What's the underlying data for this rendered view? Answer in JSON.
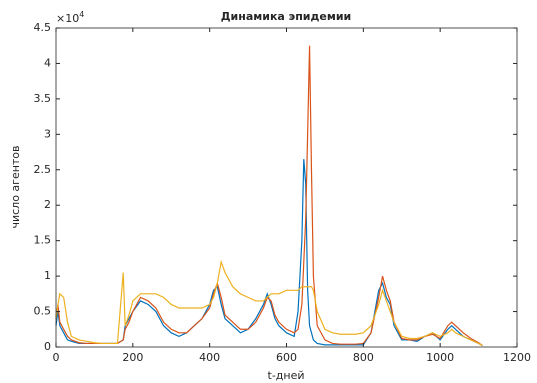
{
  "chart_data": {
    "type": "line",
    "title": "Динамика эпидемии",
    "x_label": "t-дней",
    "y_label": "число агентов",
    "y_scale_base": "×10",
    "y_scale_exponent": "4",
    "x": [
      0,
      5,
      10,
      20,
      30,
      40,
      60,
      80,
      100,
      120,
      140,
      160,
      175,
      180,
      190,
      200,
      220,
      240,
      260,
      280,
      300,
      320,
      340,
      360,
      380,
      400,
      410,
      420,
      430,
      440,
      460,
      480,
      500,
      520,
      540,
      550,
      560,
      570,
      580,
      600,
      620,
      630,
      640,
      645,
      650,
      655,
      660,
      665,
      670,
      680,
      700,
      720,
      740,
      760,
      780,
      800,
      820,
      840,
      850,
      860,
      870,
      880,
      900,
      920,
      940,
      960,
      980,
      1000,
      1020,
      1030,
      1040,
      1060,
      1080,
      1100,
      1110
    ],
    "series": [
      {
        "color": "#0072bd",
        "values": [
          0.3,
          0.5,
          0.3,
          0.2,
          0.1,
          0.08,
          0.05,
          0.05,
          0.05,
          0.05,
          0.05,
          0.05,
          0.1,
          0.3,
          0.4,
          0.5,
          0.65,
          0.6,
          0.5,
          0.3,
          0.2,
          0.15,
          0.2,
          0.3,
          0.4,
          0.6,
          0.8,
          0.85,
          0.6,
          0.4,
          0.3,
          0.2,
          0.25,
          0.4,
          0.6,
          0.75,
          0.6,
          0.4,
          0.3,
          0.2,
          0.15,
          0.5,
          1.5,
          2.65,
          2.3,
          0.8,
          0.3,
          0.2,
          0.1,
          0.05,
          0.03,
          0.03,
          0.03,
          0.03,
          0.03,
          0.03,
          0.2,
          0.8,
          0.9,
          0.7,
          0.6,
          0.3,
          0.1,
          0.1,
          0.08,
          0.15,
          0.2,
          0.1,
          0.25,
          0.3,
          0.25,
          0.15,
          0.1,
          0.05,
          0.02
        ]
      },
      {
        "color": "#d95319",
        "values": [
          0.4,
          0.6,
          0.35,
          0.25,
          0.15,
          0.1,
          0.06,
          0.05,
          0.05,
          0.05,
          0.05,
          0.05,
          0.1,
          0.25,
          0.35,
          0.5,
          0.7,
          0.65,
          0.55,
          0.35,
          0.25,
          0.2,
          0.2,
          0.3,
          0.4,
          0.55,
          0.75,
          0.9,
          0.7,
          0.45,
          0.35,
          0.25,
          0.25,
          0.35,
          0.55,
          0.7,
          0.65,
          0.45,
          0.35,
          0.25,
          0.2,
          0.25,
          0.6,
          1.2,
          1.8,
          3.0,
          4.25,
          2.5,
          1.0,
          0.3,
          0.1,
          0.05,
          0.04,
          0.04,
          0.04,
          0.05,
          0.2,
          0.7,
          1.0,
          0.8,
          0.65,
          0.35,
          0.12,
          0.1,
          0.1,
          0.15,
          0.18,
          0.12,
          0.3,
          0.35,
          0.3,
          0.2,
          0.12,
          0.06,
          0.02
        ]
      },
      {
        "color": "#edb120",
        "values": [
          0.4,
          0.6,
          0.75,
          0.7,
          0.35,
          0.15,
          0.1,
          0.08,
          0.06,
          0.05,
          0.05,
          0.05,
          1.05,
          0.3,
          0.45,
          0.65,
          0.75,
          0.75,
          0.75,
          0.7,
          0.6,
          0.55,
          0.55,
          0.55,
          0.55,
          0.6,
          0.7,
          0.9,
          1.2,
          1.05,
          0.85,
          0.75,
          0.7,
          0.65,
          0.65,
          0.7,
          0.75,
          0.75,
          0.75,
          0.8,
          0.8,
          0.8,
          0.85,
          0.85,
          0.85,
          0.85,
          0.85,
          0.85,
          0.8,
          0.5,
          0.25,
          0.2,
          0.18,
          0.18,
          0.18,
          0.2,
          0.3,
          0.6,
          0.8,
          0.65,
          0.5,
          0.35,
          0.15,
          0.12,
          0.12,
          0.15,
          0.2,
          0.15,
          0.2,
          0.25,
          0.2,
          0.15,
          0.1,
          0.05,
          0.02
        ]
      }
    ],
    "xlim": [
      0,
      1200
    ],
    "xticks": [
      0,
      200,
      400,
      600,
      800,
      1000,
      1200
    ],
    "ylim": [
      0,
      4.5
    ],
    "yticks": [
      0,
      0.5,
      1,
      1.5,
      2,
      2.5,
      3,
      3.5,
      4,
      4.5
    ]
  }
}
